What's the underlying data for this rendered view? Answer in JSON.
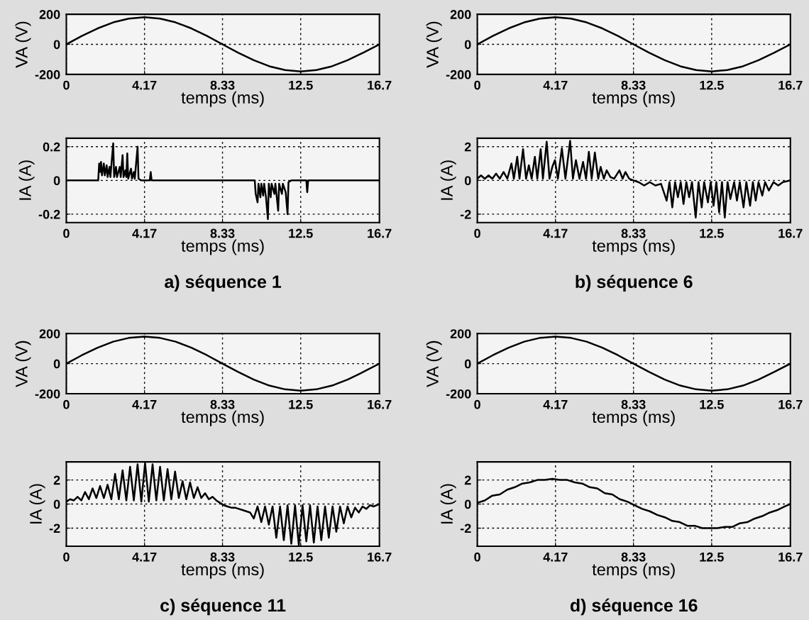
{
  "chart_data": [
    {
      "type": "line",
      "ylabel": "VA (V)",
      "xlabel": "temps (ms)",
      "xlim": [
        0,
        16.7
      ],
      "xticks": [
        0,
        4.17,
        8.33,
        12.5,
        16.7
      ],
      "ylim": [
        -200,
        200
      ],
      "yticks": [
        -200,
        0,
        200
      ],
      "grid": true,
      "series": [
        {
          "color": "#000000",
          "x": [
            0,
            0.83,
            1.67,
            2.5,
            3.33,
            4.17,
            5.0,
            5.83,
            6.67,
            7.5,
            8.33,
            9.17,
            10.0,
            10.83,
            11.67,
            12.5,
            13.33,
            14.17,
            15.0,
            15.83,
            16.7
          ],
          "values": [
            0,
            56,
            106,
            146,
            171,
            180,
            171,
            146,
            106,
            56,
            0,
            -56,
            -106,
            -146,
            -171,
            -180,
            -171,
            -146,
            -106,
            -56,
            0
          ]
        }
      ]
    },
    {
      "type": "line",
      "ylabel": "IA (A)",
      "xlabel": "temps (ms)",
      "xlim": [
        0,
        16.7
      ],
      "xticks": [
        0,
        4.17,
        8.33,
        12.5,
        16.7
      ],
      "ylim": [
        -0.25,
        0.25
      ],
      "yticks": [
        -0.2,
        0,
        0.2
      ],
      "grid": true,
      "annotations": [
        "a) séquence 1"
      ],
      "series": [
        {
          "color": "#000000",
          "x": [
            0,
            1.7,
            1.75,
            1.8,
            1.85,
            1.9,
            2.0,
            2.05,
            2.15,
            2.2,
            2.3,
            2.35,
            2.5,
            2.55,
            2.65,
            2.7,
            2.85,
            2.9,
            3.0,
            3.05,
            3.15,
            3.2,
            3.25,
            3.3,
            3.45,
            3.5,
            3.6,
            3.65,
            3.8,
            3.85,
            4.0,
            4.45,
            4.5,
            4.55,
            10.05,
            10.1,
            10.2,
            10.25,
            10.35,
            10.4,
            10.5,
            10.55,
            10.65,
            10.75,
            10.8,
            10.9,
            10.95,
            11.1,
            11.15,
            11.3,
            11.35,
            11.5,
            11.55,
            11.7,
            11.8,
            11.85,
            12.0,
            12.8,
            12.85,
            12.9,
            16.7
          ],
          "values": [
            0,
            0,
            0.1,
            0.05,
            0.11,
            0.03,
            0.1,
            0.03,
            0.09,
            0.02,
            0.08,
            0.02,
            0.22,
            0.02,
            0.08,
            0.02,
            0.08,
            0.02,
            0.15,
            0.02,
            0.06,
            0.02,
            0.16,
            0.01,
            0.07,
            0.01,
            0.05,
            0.01,
            0.2,
            0.01,
            0,
            0,
            0.05,
            0,
            0,
            -0.08,
            -0.13,
            -0.02,
            -0.1,
            -0.02,
            -0.09,
            -0.02,
            -0.1,
            -0.23,
            -0.02,
            -0.1,
            -0.02,
            -0.08,
            -0.02,
            -0.18,
            -0.02,
            -0.08,
            -0.02,
            -0.07,
            -0.2,
            -0.01,
            0,
            0,
            -0.07,
            0,
            0
          ]
        }
      ]
    },
    {
      "type": "line",
      "ylabel": "VA (V)",
      "xlabel": "temps (ms)",
      "xlim": [
        0,
        16.7
      ],
      "xticks": [
        0,
        4.17,
        8.33,
        12.5,
        16.7
      ],
      "ylim": [
        -200,
        200
      ],
      "yticks": [
        -200,
        0,
        200
      ],
      "grid": true,
      "series": [
        {
          "color": "#000000",
          "x": [
            0,
            0.83,
            1.67,
            2.5,
            3.33,
            4.17,
            5.0,
            5.83,
            6.67,
            7.5,
            8.33,
            9.17,
            10.0,
            10.83,
            11.67,
            12.5,
            13.33,
            14.17,
            15.0,
            15.83,
            16.7
          ],
          "values": [
            0,
            56,
            106,
            146,
            171,
            180,
            171,
            146,
            106,
            56,
            0,
            -56,
            -106,
            -146,
            -171,
            -180,
            -171,
            -146,
            -106,
            -56,
            0
          ]
        }
      ]
    },
    {
      "type": "line",
      "ylabel": "IA (A)",
      "xlabel": "temps (ms)",
      "xlim": [
        0,
        16.7
      ],
      "xticks": [
        0,
        4.17,
        8.33,
        12.5,
        16.7
      ],
      "ylim": [
        -2.5,
        2.5
      ],
      "yticks": [
        -2,
        0,
        2
      ],
      "grid": true,
      "annotations": [
        "b) séquence 6"
      ],
      "series": [
        {
          "color": "#000000",
          "x": [
            0,
            0.2,
            0.4,
            0.6,
            0.8,
            1.0,
            1.2,
            1.4,
            1.6,
            1.82,
            1.95,
            2.13,
            2.25,
            2.44,
            2.6,
            2.75,
            2.9,
            3.07,
            3.2,
            3.38,
            3.5,
            3.7,
            3.85,
            4.0,
            4.14,
            4.3,
            4.51,
            4.7,
            4.95,
            5.1,
            5.26,
            5.45,
            5.64,
            5.8,
            5.95,
            6.1,
            6.27,
            6.45,
            6.58,
            6.75,
            6.9,
            7.1,
            7.3,
            7.58,
            7.75,
            7.9,
            8.1,
            8.33,
            8.6,
            8.9,
            9.2,
            9.5,
            9.8,
            10.1,
            10.25,
            10.4,
            10.55,
            10.7,
            10.85,
            11.0,
            11.15,
            11.3,
            11.45,
            11.65,
            11.8,
            11.97,
            12.1,
            12.3,
            12.45,
            12.6,
            12.75,
            12.9,
            13.05,
            13.2,
            13.35,
            13.5,
            13.7,
            13.85,
            14.0,
            14.2,
            14.35,
            14.55,
            14.7,
            14.85,
            15.0,
            15.2,
            15.35,
            15.55,
            15.8,
            16.05,
            16.3,
            16.7
          ],
          "values": [
            0.1,
            0.3,
            0.1,
            0.3,
            0.1,
            0.4,
            0.1,
            0.5,
            0.1,
            1.0,
            0.1,
            1.4,
            0.1,
            1.85,
            0.1,
            0.9,
            0.1,
            1.4,
            0.1,
            1.85,
            0.1,
            2.3,
            0.1,
            0.8,
            1.2,
            0.1,
            1.9,
            0.1,
            2.35,
            0.1,
            1.2,
            0.1,
            1.1,
            0.1,
            1.7,
            0.1,
            1.65,
            0.1,
            0.8,
            0.1,
            0.6,
            0.2,
            0.1,
            0.6,
            0.1,
            0.5,
            0.1,
            0,
            -0.1,
            -0.3,
            -0.1,
            -0.3,
            -0.2,
            -1.2,
            -0.1,
            -1.6,
            -0.1,
            -1.0,
            -0.1,
            -1.4,
            -0.1,
            -1.0,
            -0.1,
            -2.2,
            -0.1,
            -1.6,
            -0.1,
            -1.3,
            -0.1,
            -1.5,
            -0.1,
            -1.9,
            -0.1,
            -2.2,
            -0.1,
            -1.1,
            -0.1,
            -1.2,
            -0.1,
            -1.6,
            -0.1,
            -1.5,
            -0.1,
            -1.2,
            -0.1,
            -0.9,
            -0.1,
            -0.6,
            -0.1,
            -0.3,
            -0.1,
            0
          ]
        }
      ]
    },
    {
      "type": "line",
      "ylabel": "VA (V)",
      "xlabel": "temps (ms)",
      "xlim": [
        0,
        16.7
      ],
      "xticks": [
        0,
        4.17,
        8.33,
        12.5,
        16.7
      ],
      "ylim": [
        -200,
        200
      ],
      "yticks": [
        -200,
        0,
        200
      ],
      "grid": true,
      "series": [
        {
          "color": "#000000",
          "x": [
            0,
            0.83,
            1.67,
            2.5,
            3.33,
            4.17,
            5.0,
            5.83,
            6.67,
            7.5,
            8.33,
            9.17,
            10.0,
            10.83,
            11.67,
            12.5,
            13.33,
            14.17,
            15.0,
            15.83,
            16.7
          ],
          "values": [
            0,
            56,
            106,
            146,
            171,
            180,
            171,
            146,
            106,
            56,
            0,
            -56,
            -106,
            -146,
            -171,
            -180,
            -171,
            -146,
            -106,
            -56,
            0
          ]
        }
      ]
    },
    {
      "type": "line",
      "ylabel": "IA (A)",
      "xlabel": "temps (ms)",
      "xlim": [
        0,
        16.7
      ],
      "xticks": [
        0,
        4.17,
        8.33,
        12.5,
        16.7
      ],
      "ylim": [
        -3.5,
        3.5
      ],
      "yticks": [
        -2,
        0,
        2
      ],
      "grid": true,
      "annotations": [
        "c) séquence 11"
      ],
      "series": [
        {
          "color": "#000000",
          "x": [
            0,
            0.2,
            0.4,
            0.6,
            0.8,
            1.0,
            1.2,
            1.4,
            1.6,
            1.8,
            2.0,
            2.2,
            2.4,
            2.6,
            2.8,
            3.0,
            3.2,
            3.4,
            3.6,
            3.8,
            4.0,
            4.2,
            4.4,
            4.6,
            4.8,
            5.0,
            5.2,
            5.4,
            5.6,
            5.8,
            6.0,
            6.2,
            6.4,
            6.6,
            6.8,
            7.0,
            7.2,
            7.4,
            7.6,
            7.8,
            8.0,
            8.2,
            8.4,
            8.6,
            8.8,
            9.0,
            9.2,
            9.4,
            9.6,
            9.8,
            10.0,
            10.2,
            10.4,
            10.6,
            10.8,
            11.0,
            11.2,
            11.4,
            11.6,
            11.8,
            12.0,
            12.2,
            12.4,
            12.6,
            12.8,
            13.0,
            13.2,
            13.4,
            13.6,
            13.8,
            14.0,
            14.2,
            14.4,
            14.6,
            14.8,
            15.0,
            15.2,
            15.4,
            15.6,
            15.8,
            16.0,
            16.2,
            16.4,
            16.7
          ],
          "values": [
            0.2,
            0.4,
            0.3,
            0.6,
            0.3,
            1.0,
            0.4,
            1.3,
            0.5,
            1.5,
            0.5,
            1.6,
            0.4,
            2.5,
            0.4,
            2.8,
            0.3,
            3.1,
            0.3,
            3.3,
            0.2,
            3.4,
            0.2,
            3.3,
            0.3,
            3.1,
            0.3,
            2.9,
            0.4,
            2.7,
            0.5,
            1.9,
            0.4,
            1.8,
            0.5,
            1.4,
            0.5,
            0.9,
            0.4,
            0.6,
            0.3,
            0.1,
            -0.1,
            -0.2,
            -0.3,
            -0.3,
            -0.4,
            -0.5,
            -0.6,
            -0.7,
            -1.2,
            -0.2,
            -1.5,
            -0.2,
            -1.7,
            -0.2,
            -2.8,
            -0.2,
            -3.0,
            -0.1,
            -3.3,
            -0.1,
            -3.4,
            -0.1,
            -3.1,
            -0.1,
            -3.2,
            -0.2,
            -3.0,
            -0.2,
            -2.8,
            -0.2,
            -2.3,
            -0.2,
            -1.6,
            -0.2,
            -1.1,
            -0.3,
            -0.7,
            -0.2,
            -0.4,
            -0.1,
            -0.2,
            0
          ]
        }
      ]
    },
    {
      "type": "line",
      "ylabel": "VA (V)",
      "xlabel": "temps (ms)",
      "xlim": [
        0,
        16.7
      ],
      "xticks": [
        0,
        4.17,
        8.33,
        12.5,
        16.7
      ],
      "ylim": [
        -200,
        200
      ],
      "yticks": [
        -200,
        0,
        200
      ],
      "grid": true,
      "series": [
        {
          "color": "#000000",
          "x": [
            0,
            0.83,
            1.67,
            2.5,
            3.33,
            4.17,
            5.0,
            5.83,
            6.67,
            7.5,
            8.33,
            9.17,
            10.0,
            10.83,
            11.67,
            12.5,
            13.33,
            14.17,
            15.0,
            15.83,
            16.7
          ],
          "values": [
            0,
            56,
            106,
            146,
            171,
            180,
            171,
            146,
            106,
            56,
            0,
            -56,
            -106,
            -146,
            -171,
            -180,
            -171,
            -146,
            -106,
            -56,
            0
          ]
        }
      ]
    },
    {
      "type": "line",
      "ylabel": "IA (A)",
      "xlabel": "temps (ms)",
      "xlim": [
        0,
        16.7
      ],
      "xticks": [
        0,
        4.17,
        8.33,
        12.5,
        16.7
      ],
      "ylim": [
        -3.5,
        3.5
      ],
      "yticks": [
        -2,
        0,
        2
      ],
      "grid": true,
      "annotations": [
        "d) séquence 16"
      ],
      "series": [
        {
          "color": "#000000",
          "x": [
            0,
            0.4,
            0.8,
            1.2,
            1.6,
            2.0,
            2.4,
            2.8,
            3.2,
            3.6,
            4.0,
            4.4,
            4.8,
            5.2,
            5.6,
            6.0,
            6.4,
            6.8,
            7.2,
            7.6,
            8.0,
            8.4,
            8.8,
            9.2,
            9.6,
            10.0,
            10.4,
            10.8,
            11.2,
            11.6,
            12.0,
            12.4,
            12.8,
            13.2,
            13.6,
            14.0,
            14.4,
            14.8,
            15.2,
            15.6,
            16.0,
            16.4,
            16.7
          ],
          "values": [
            0.1,
            0.3,
            0.7,
            0.8,
            1.2,
            1.4,
            1.7,
            1.8,
            2.0,
            2.0,
            2.1,
            2.0,
            2.0,
            1.8,
            1.7,
            1.4,
            1.3,
            0.9,
            0.8,
            0.4,
            0.2,
            -0.1,
            -0.4,
            -0.6,
            -0.9,
            -1.1,
            -1.4,
            -1.5,
            -1.8,
            -1.8,
            -2.0,
            -2.0,
            -2.0,
            -1.9,
            -1.9,
            -1.6,
            -1.5,
            -1.2,
            -1.0,
            -0.7,
            -0.5,
            -0.2,
            0
          ]
        }
      ]
    }
  ]
}
